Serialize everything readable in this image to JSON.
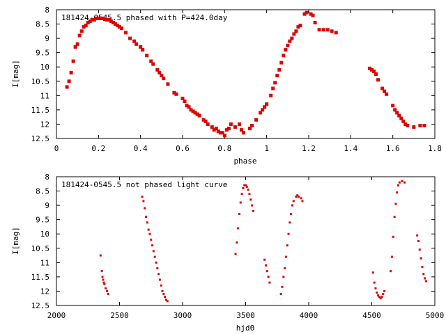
{
  "colors": {
    "points": "#e00000",
    "axes": "#000000",
    "background": "#ffffff"
  },
  "chart_data": [
    {
      "type": "scatter",
      "title": "181424-0545.5 phased with P=424.0day",
      "xlabel": "phase",
      "ylabel": "I[mag]",
      "xlim": [
        0,
        1.8
      ],
      "ylim": [
        8,
        12.5
      ],
      "y_inverted": true,
      "grid": false,
      "xticks": [
        "0",
        "0.2",
        "0.4",
        "0.6",
        "0.8",
        "1",
        "1.2",
        "1.4",
        "1.6",
        "1.8"
      ],
      "yticks": [
        "8",
        "8.5",
        "9",
        "9.5",
        "10",
        "10.5",
        "11",
        "11.5",
        "12",
        "12.5"
      ],
      "x": [
        0.05,
        0.06,
        0.07,
        0.08,
        0.09,
        0.1,
        0.11,
        0.12,
        0.13,
        0.14,
        0.15,
        0.16,
        0.17,
        0.18,
        0.19,
        0.2,
        0.21,
        0.22,
        0.23,
        0.24,
        0.25,
        0.26,
        0.27,
        0.28,
        0.29,
        0.3,
        0.31,
        0.33,
        0.35,
        0.37,
        0.38,
        0.4,
        0.41,
        0.43,
        0.45,
        0.46,
        0.48,
        0.49,
        0.5,
        0.51,
        0.53,
        0.56,
        0.57,
        0.6,
        0.61,
        0.62,
        0.63,
        0.64,
        0.65,
        0.66,
        0.67,
        0.68,
        0.7,
        0.71,
        0.72,
        0.74,
        0.75,
        0.76,
        0.77,
        0.78,
        0.79,
        0.8,
        0.81,
        0.82,
        0.83,
        0.85,
        0.87,
        0.88,
        0.89,
        0.92,
        0.93,
        0.95,
        0.97,
        0.98,
        0.99,
        1.0,
        1.02,
        1.03,
        1.04,
        1.05,
        1.06,
        1.07,
        1.08,
        1.09,
        1.1,
        1.11,
        1.12,
        1.13,
        1.14,
        1.15,
        1.16,
        1.18,
        1.19,
        1.21,
        1.22,
        1.23,
        1.25,
        1.27,
        1.29,
        1.31,
        1.33,
        1.49,
        1.5,
        1.51,
        1.52,
        1.53,
        1.55,
        1.56,
        1.57,
        1.6,
        1.61,
        1.62,
        1.63,
        1.64,
        1.65,
        1.66,
        1.67,
        1.7,
        1.73,
        1.75
      ],
      "y": [
        10.7,
        10.5,
        10.2,
        9.8,
        9.3,
        9.2,
        8.9,
        8.75,
        8.6,
        8.55,
        8.45,
        8.4,
        8.35,
        8.35,
        8.3,
        8.3,
        8.3,
        8.3,
        8.33,
        8.35,
        8.35,
        8.4,
        8.45,
        8.5,
        8.55,
        8.6,
        8.65,
        8.8,
        9.0,
        9.1,
        9.2,
        9.3,
        9.4,
        9.6,
        9.8,
        9.9,
        10.1,
        10.2,
        10.3,
        10.4,
        10.6,
        10.9,
        10.95,
        11.1,
        11.2,
        11.35,
        11.4,
        11.5,
        11.55,
        11.6,
        11.65,
        11.7,
        11.85,
        11.9,
        12.0,
        12.1,
        12.2,
        12.15,
        12.25,
        12.3,
        12.3,
        12.4,
        12.2,
        12.15,
        12.0,
        12.1,
        12.0,
        12.2,
        12.3,
        12.15,
        12.05,
        11.85,
        11.6,
        11.5,
        11.4,
        11.3,
        11.0,
        10.75,
        10.55,
        10.3,
        10.1,
        9.85,
        9.6,
        9.4,
        9.25,
        9.1,
        9.0,
        8.85,
        8.75,
        8.6,
        8.55,
        8.15,
        8.1,
        8.15,
        8.2,
        8.45,
        8.7,
        8.7,
        8.7,
        8.75,
        8.8,
        10.05,
        10.1,
        10.15,
        10.25,
        10.45,
        10.75,
        10.85,
        10.95,
        11.35,
        11.5,
        11.6,
        11.7,
        11.8,
        11.9,
        12.0,
        12.05,
        12.1,
        12.05,
        12.05
      ]
    },
    {
      "type": "scatter",
      "title": "181424-0545.5 not phased light curve",
      "xlabel": "hjd0",
      "ylabel": "I[mag]",
      "xlim": [
        2000,
        5000
      ],
      "ylim": [
        8,
        12.5
      ],
      "y_inverted": true,
      "grid": false,
      "xticks": [
        "2000",
        "2500",
        "3000",
        "3500",
        "4000",
        "4500",
        "5000"
      ],
      "yticks": [
        "8",
        "8.5",
        "9",
        "9.5",
        "10",
        "10.5",
        "11",
        "11.5",
        "12",
        "12.5"
      ],
      "x": [
        2350,
        2360,
        2365,
        2370,
        2375,
        2380,
        2390,
        2400,
        2410,
        2680,
        2690,
        2700,
        2710,
        2720,
        2730,
        2740,
        2750,
        2760,
        2770,
        2780,
        2790,
        2800,
        2810,
        2820,
        2830,
        2840,
        2850,
        2860,
        2870,
        2880,
        3420,
        3430,
        3440,
        3450,
        3460,
        3470,
        3480,
        3490,
        3500,
        3510,
        3520,
        3530,
        3540,
        3550,
        3560,
        3650,
        3660,
        3670,
        3680,
        3690,
        3780,
        3790,
        3800,
        3810,
        3820,
        3830,
        3840,
        3850,
        3860,
        3870,
        3880,
        3900,
        3910,
        3920,
        3940,
        3950,
        4510,
        4520,
        4530,
        4540,
        4550,
        4560,
        4570,
        4580,
        4590,
        4600,
        4650,
        4660,
        4670,
        4680,
        4690,
        4700,
        4710,
        4720,
        4740,
        4760,
        4860,
        4870,
        4880,
        4890,
        4900,
        4910,
        4920,
        4930
      ],
      "y": [
        10.75,
        11.3,
        11.5,
        11.6,
        11.7,
        11.75,
        11.9,
        12.0,
        12.1,
        8.7,
        8.85,
        9.1,
        9.4,
        9.6,
        9.85,
        10.0,
        10.2,
        10.4,
        10.6,
        10.8,
        11.0,
        11.2,
        11.4,
        11.6,
        11.8,
        12.0,
        12.1,
        12.2,
        12.3,
        12.35,
        10.7,
        10.3,
        9.8,
        9.3,
        8.9,
        8.6,
        8.4,
        8.3,
        8.3,
        8.35,
        8.45,
        8.6,
        8.8,
        9.0,
        9.2,
        10.9,
        11.1,
        11.3,
        11.5,
        11.7,
        12.1,
        11.85,
        11.5,
        11.2,
        10.8,
        10.4,
        10.0,
        9.6,
        9.3,
        9.0,
        8.85,
        8.7,
        8.65,
        8.7,
        8.75,
        8.85,
        11.35,
        11.7,
        11.9,
        12.05,
        12.15,
        12.2,
        12.25,
        12.2,
        12.1,
        12.0,
        11.3,
        10.8,
        10.1,
        9.4,
        8.95,
        8.55,
        8.3,
        8.2,
        8.15,
        8.2,
        10.05,
        10.25,
        10.55,
        10.85,
        11.15,
        11.4,
        11.55,
        11.65
      ]
    }
  ]
}
